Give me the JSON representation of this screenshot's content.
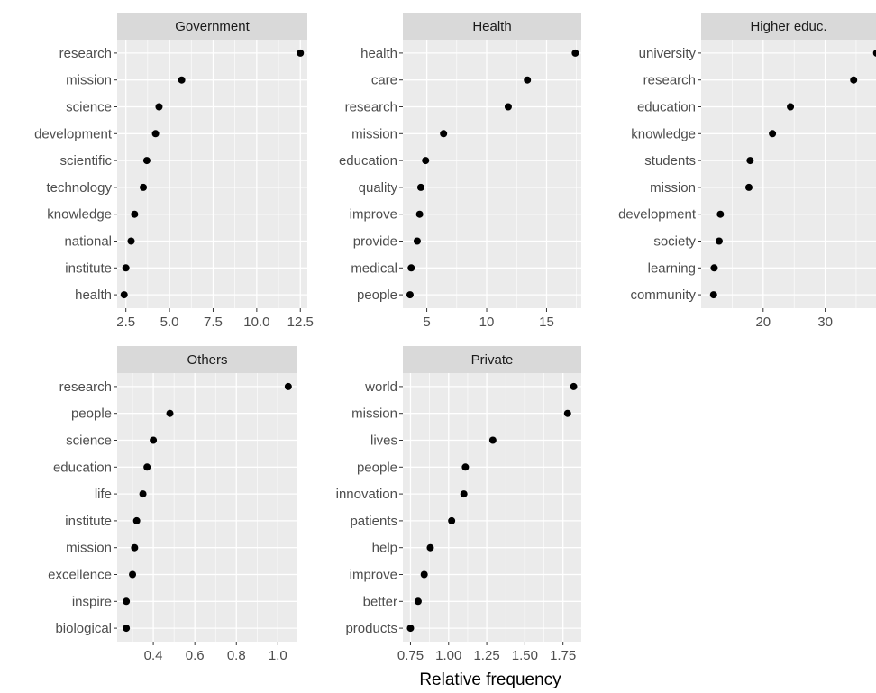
{
  "chart_data": {
    "type": "scatter",
    "xlabel": "Relative frequency",
    "facets": [
      {
        "strip": "Government",
        "categories": [
          "research",
          "mission",
          "science",
          "development",
          "scientific",
          "technology",
          "knowledge",
          "national",
          "institute",
          "health"
        ],
        "values": [
          12.5,
          5.7,
          4.4,
          4.2,
          3.7,
          3.5,
          3.0,
          2.8,
          2.5,
          2.4
        ],
        "xlim": [
          2.0,
          12.9
        ],
        "xticks": [
          2.5,
          5.0,
          7.5,
          10.0,
          12.5
        ],
        "xtick_labels": [
          "2.5",
          "5.0",
          "7.5",
          "10.0",
          "12.5"
        ]
      },
      {
        "strip": "Health",
        "categories": [
          "health",
          "care",
          "research",
          "mission",
          "education",
          "quality",
          "improve",
          "provide",
          "medical",
          "people"
        ],
        "values": [
          17.4,
          13.4,
          11.8,
          6.4,
          4.9,
          4.5,
          4.4,
          4.2,
          3.7,
          3.6
        ],
        "xlim": [
          3.0,
          17.9
        ],
        "xticks": [
          5,
          10,
          15
        ],
        "xtick_labels": [
          "5",
          "10",
          "15"
        ]
      },
      {
        "strip": "Higher educ.",
        "categories": [
          "university",
          "research",
          "education",
          "knowledge",
          "students",
          "mission",
          "development",
          "society",
          "learning",
          "community"
        ],
        "values": [
          38.3,
          34.6,
          24.4,
          21.5,
          17.9,
          17.7,
          13.1,
          12.9,
          12.1,
          12.0
        ],
        "xlim": [
          10.0,
          38.2
        ],
        "xticks": [
          20,
          30
        ],
        "xtick_labels": [
          "20",
          "30"
        ]
      },
      {
        "strip": "Others",
        "categories": [
          "research",
          "people",
          "science",
          "education",
          "life",
          "institute",
          "mission",
          "excellence",
          "inspire",
          "biological"
        ],
        "values": [
          1.05,
          0.48,
          0.4,
          0.37,
          0.35,
          0.32,
          0.31,
          0.3,
          0.27,
          0.27
        ],
        "xlim": [
          0.226,
          1.094
        ],
        "xticks": [
          0.4,
          0.6,
          0.8,
          1.0
        ],
        "xtick_labels": [
          "0.4",
          "0.6",
          "0.8",
          "1.0"
        ]
      },
      {
        "strip": "Private",
        "categories": [
          "world",
          "mission",
          "lives",
          "people",
          "innovation",
          "patients",
          "help",
          "improve",
          "better",
          "products"
        ],
        "values": [
          1.82,
          1.78,
          1.29,
          1.11,
          1.1,
          1.02,
          0.88,
          0.84,
          0.8,
          0.75
        ],
        "xlim": [
          0.7,
          1.87
        ],
        "xticks": [
          0.75,
          1.0,
          1.25,
          1.5,
          1.75
        ],
        "xtick_labels": [
          "0.75",
          "1.00",
          "1.25",
          "1.50",
          "1.75"
        ]
      }
    ],
    "colors": {
      "panel_background": "#ebebeb",
      "strip_background": "#d9d9d9",
      "gridline": "#ffffff",
      "point": "#000000",
      "axis_text": "#4d4d4d",
      "strip_text": "#1a1a1a"
    },
    "grid": true,
    "legend": "none"
  }
}
